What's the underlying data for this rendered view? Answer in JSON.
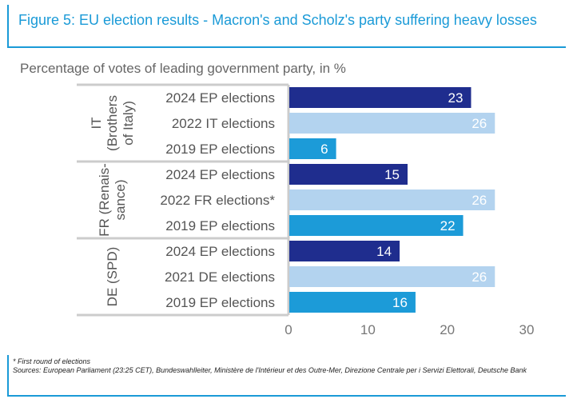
{
  "header": {
    "title": "Figure 5: EU election results - Macron's and Scholz's party suffering heavy losses"
  },
  "chart_data": {
    "type": "bar",
    "orientation": "horizontal",
    "title": "Percentage of votes of leading government party, in %",
    "xlabel": "",
    "ylabel": "",
    "xlim": [
      0,
      30
    ],
    "xticks": [
      0,
      10,
      20,
      30
    ],
    "grid": false,
    "legend": "none",
    "groups": [
      {
        "label": "IT (Brothers of Italy)",
        "label_lines": [
          "IT",
          "(Brothers",
          "of Italy)"
        ],
        "bars": [
          {
            "label": "2024 EP elections",
            "value": 23,
            "kind": "ep2024"
          },
          {
            "label": "2022 IT elections",
            "value": 26,
            "kind": "national"
          },
          {
            "label": "2019 EP elections",
            "value": 6,
            "kind": "ep2019"
          }
        ]
      },
      {
        "label": "FR (Renais-sance)",
        "label_lines": [
          "FR (Renais-",
          "sance)"
        ],
        "bars": [
          {
            "label": "2024 EP elections",
            "value": 15,
            "kind": "ep2024"
          },
          {
            "label": "2022 FR elections*",
            "value": 26,
            "kind": "national"
          },
          {
            "label": "2019 EP elections",
            "value": 22,
            "kind": "ep2019"
          }
        ]
      },
      {
        "label": "DE (SPD)",
        "label_lines": [
          "DE (SPD)"
        ],
        "bars": [
          {
            "label": "2024 EP elections",
            "value": 14,
            "kind": "ep2024"
          },
          {
            "label": "2021 DE elections",
            "value": 26,
            "kind": "national"
          },
          {
            "label": "2019 EP elections",
            "value": 16,
            "kind": "ep2019"
          }
        ]
      }
    ],
    "colors": {
      "ep2024": "#1f2d8e",
      "national": "#b3d3ef",
      "ep2019": "#1c9bd8",
      "divider": "#cccccc"
    }
  },
  "footer": {
    "footnote": "* First round of elections",
    "sources": "Sources: European Parliament (23:25 CET), Bundeswahlleiter, Ministère de l'Intérieur et des Outre-Mer, Direzione Centrale per i Servizi Elettorali, Deutsche Bank"
  }
}
